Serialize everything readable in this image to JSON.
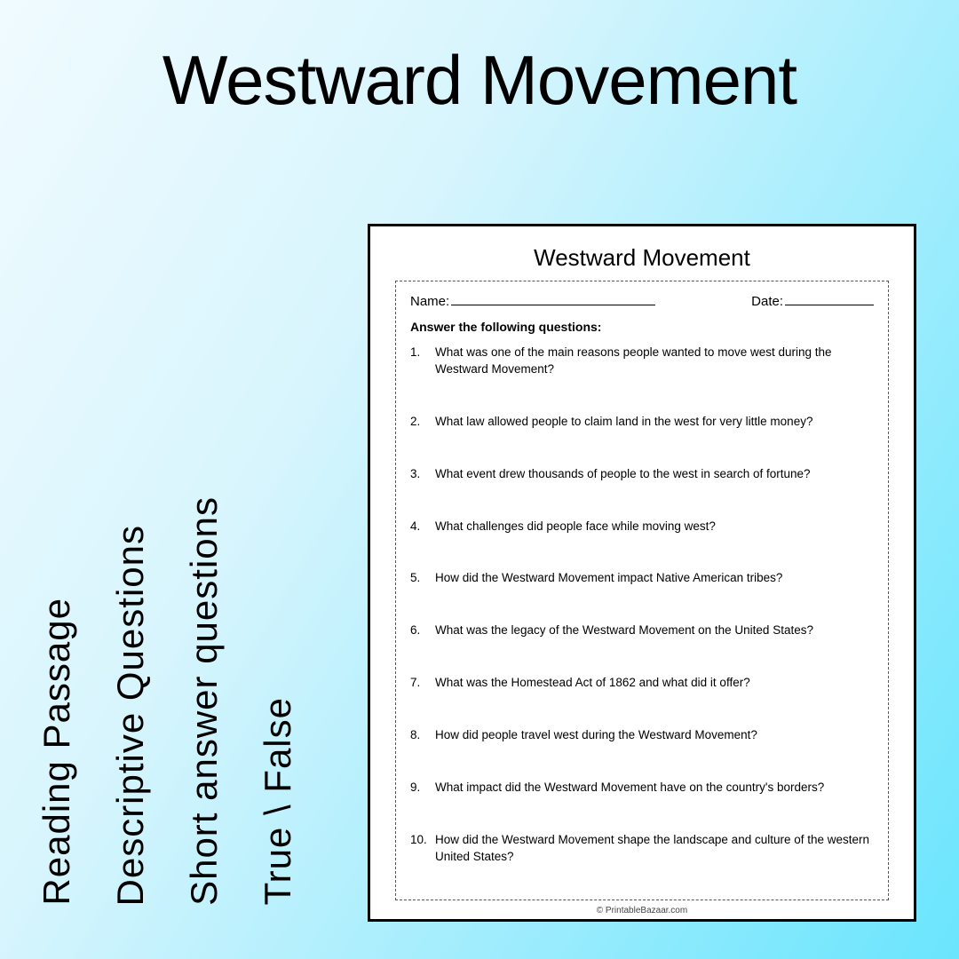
{
  "title": "Westward Movement",
  "features": [
    "Reading Passage",
    "Descriptive Questions",
    "Short answer questions",
    "True \\ False"
  ],
  "worksheet": {
    "heading": "Westward Movement",
    "name_label": "Name:",
    "date_label": "Date:",
    "instructions": "Answer the following questions:",
    "questions": [
      "What was one of the main reasons people wanted to move west during the Westward Movement?",
      "What law allowed people to claim land in the west for very little money?",
      "What event drew thousands of people to the west in search of fortune?",
      "What challenges did people face while moving west?",
      "How did the Westward Movement impact Native American tribes?",
      "What was the legacy of the Westward Movement on the United States?",
      "What was the Homestead Act of 1862 and what did it offer?",
      "How did people travel west during the Westward Movement?",
      "What impact did the Westward Movement have on the country's borders?",
      "How did the Westward Movement shape the landscape and culture of the western United States?"
    ],
    "copyright": "© PrintableBazaar.com"
  }
}
